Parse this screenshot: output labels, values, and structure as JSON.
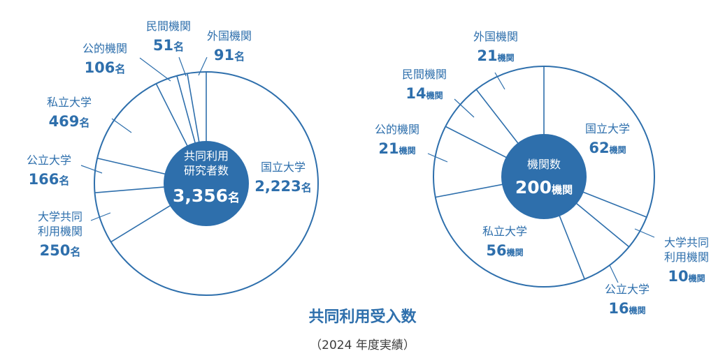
{
  "colors": {
    "primary": "#2e6fac",
    "center": "#2e6fac",
    "center_text": "#ffffff"
  },
  "title": "共同利用受入数",
  "subtitle": "（2024 年度実績）",
  "chart_data": [
    {
      "type": "pie",
      "center_label": [
        "共同利用",
        "研究者数"
      ],
      "center_value": "3,356",
      "center_unit": "名",
      "total": 3356,
      "unit": "名",
      "slices": [
        {
          "name": [
            "国立大学"
          ],
          "value": 2223,
          "value_text": "2,223"
        },
        {
          "name": [
            "大学共同",
            "利用機関"
          ],
          "value": 250,
          "value_text": "250"
        },
        {
          "name": [
            "公立大学"
          ],
          "value": 166,
          "value_text": "166"
        },
        {
          "name": [
            "私立大学"
          ],
          "value": 469,
          "value_text": "469"
        },
        {
          "name": [
            "公的機関"
          ],
          "value": 106,
          "value_text": "106"
        },
        {
          "name": [
            "民間機関"
          ],
          "value": 51,
          "value_text": "51"
        },
        {
          "name": [
            "外国機関"
          ],
          "value": 91,
          "value_text": "91"
        }
      ]
    },
    {
      "type": "pie",
      "center_label": [
        "機関数"
      ],
      "center_value": "200",
      "center_unit": "機関",
      "total": 200,
      "unit": "機関",
      "slices": [
        {
          "name": [
            "国立大学"
          ],
          "value": 62,
          "value_text": "62"
        },
        {
          "name": [
            "大学共同",
            "利用機関"
          ],
          "value": 10,
          "value_text": "10"
        },
        {
          "name": [
            "公立大学"
          ],
          "value": 16,
          "value_text": "16"
        },
        {
          "name": [
            "私立大学"
          ],
          "value": 56,
          "value_text": "56"
        },
        {
          "name": [
            "公的機関"
          ],
          "value": 21,
          "value_text": "21"
        },
        {
          "name": [
            "民間機関"
          ],
          "value": 14,
          "value_text": "14"
        },
        {
          "name": [
            "外国機関"
          ],
          "value": 21,
          "value_text": "21"
        }
      ]
    }
  ]
}
